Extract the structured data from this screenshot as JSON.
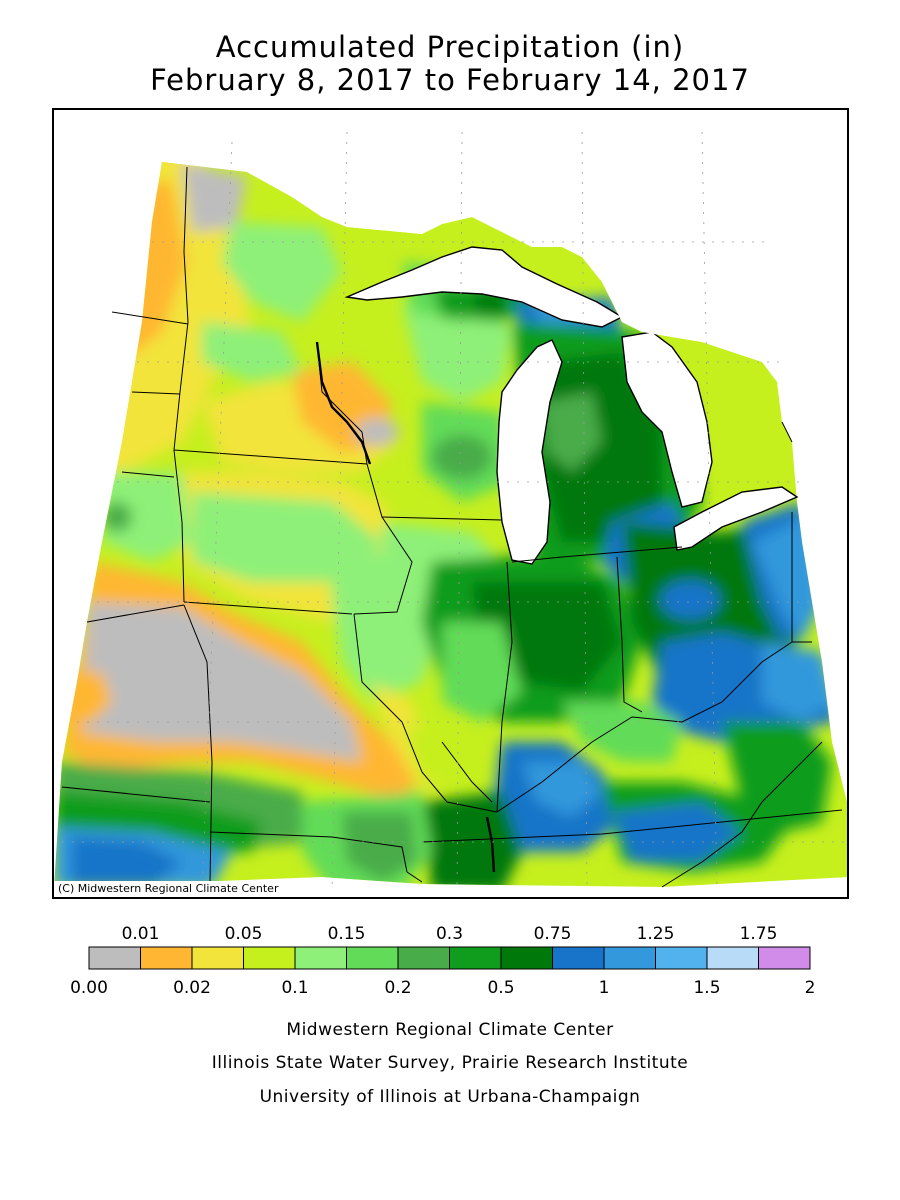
{
  "title": {
    "line1": "Accumulated Precipitation (in)",
    "line2": "February 8, 2017 to February 14, 2017"
  },
  "map": {
    "copyright": "(C) Midwestern Regional Climate Center"
  },
  "legend": {
    "bins": [
      {
        "color": "#bdbdbd"
      },
      {
        "color": "#ffb733"
      },
      {
        "color": "#f2e43a"
      },
      {
        "color": "#c6ef1e"
      },
      {
        "color": "#8ef078"
      },
      {
        "color": "#62dc58"
      },
      {
        "color": "#48ac48"
      },
      {
        "color": "#109c1c"
      },
      {
        "color": "#00780a"
      },
      {
        "color": "#1874c8"
      },
      {
        "color": "#3398dc"
      },
      {
        "color": "#52b2ee"
      },
      {
        "color": "#b8dcf8"
      },
      {
        "color": "#d08ce8"
      }
    ],
    "top_labels": [
      "0.01",
      "0.05",
      "0.15",
      "0.3",
      "0.75",
      "1.25",
      "1.75"
    ],
    "bottom_labels": [
      "0.00",
      "0.02",
      "0.1",
      "0.2",
      "0.5",
      "1",
      "1.5",
      "2"
    ]
  },
  "credits": {
    "line1": "Midwestern Regional Climate Center",
    "line2": "Illinois State Water Survey, Prairie Research Institute",
    "line3": "University of Illinois at Urbana-Champaign"
  }
}
